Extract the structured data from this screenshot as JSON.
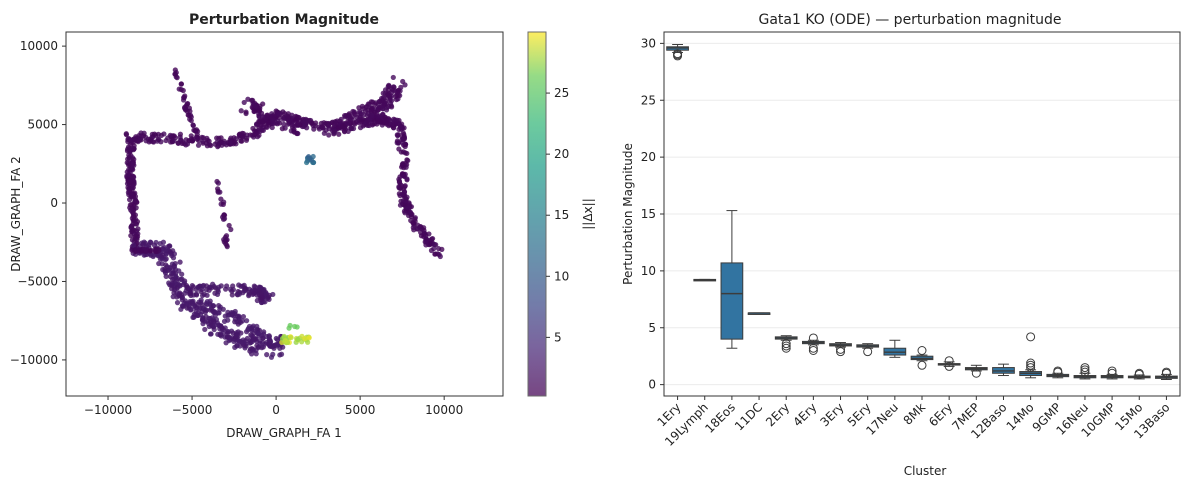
{
  "chart_data": [
    {
      "type": "scatter",
      "title": "Perturbation Magnitude",
      "xlabel": "DRAW_GRAPH_FA 1",
      "ylabel": "DRAW_GRAPH_FA 2",
      "xlim": [
        -12500,
        13500
      ],
      "ylim": [
        -12300,
        10900
      ],
      "xticks": [
        -10000,
        -5000,
        0,
        5000,
        10000
      ],
      "xtick_labels": [
        "−10000",
        "−5000",
        "0",
        "5000",
        "10000"
      ],
      "yticks": [
        -10000,
        -5000,
        0,
        5000,
        10000
      ],
      "ytick_labels": [
        "−10000",
        "−5000",
        "0",
        "5000",
        "10000"
      ],
      "colorbar": {
        "label": "||Δx||",
        "min": 0.2,
        "max": 30,
        "ticks": [
          5,
          10,
          15,
          20,
          25
        ],
        "colormap": "viridis"
      },
      "grid": false,
      "point_colors": {
        "low": "#481467",
        "mid": "#2c7b8e",
        "high": "#f7e01c"
      },
      "approx_point_groups": [
        {
          "region": "left vertical arm",
          "x_range": [
            -9000,
            -8200
          ],
          "y_range": [
            -3000,
            4200
          ],
          "value": 0.8
        },
        {
          "region": "upper arc",
          "x_range": [
            -9000,
            1800
          ],
          "y_range": [
            3500,
            6500
          ],
          "value": 0.8
        },
        {
          "region": "right upper lobe",
          "x_range": [
            1800,
            7600
          ],
          "y_range": [
            4000,
            7700
          ],
          "value": 0.8
        },
        {
          "region": "diagonal right branch",
          "x_range": [
            5600,
            10000
          ],
          "y_range": [
            -3400,
            4000
          ],
          "value": 0.8
        },
        {
          "region": "lower branch",
          "x_range": [
            -7000,
            -500
          ],
          "y_range": [
            -10000,
            -3000
          ],
          "value": 2.5
        },
        {
          "region": "lower tip bright",
          "x_range": [
            0,
            2300
          ],
          "y_range": [
            -9000,
            -8000
          ],
          "value": 29
        },
        {
          "region": "cluster mid",
          "x_range": [
            1900,
            2400
          ],
          "y_range": [
            2600,
            3100
          ],
          "value": 11
        }
      ]
    },
    {
      "type": "box",
      "title": "Gata1 KO (ODE) — perturbation magnitude",
      "xlabel": "Cluster",
      "ylabel": "Perturbation Magnitude",
      "ylim": [
        -1,
        31
      ],
      "yticks": [
        0,
        5,
        10,
        15,
        20,
        25,
        30
      ],
      "grid": "horizontal",
      "box_color": "#3274a1",
      "categories": [
        "1Ery",
        "19Lymph",
        "18Eos",
        "11DC",
        "2Ery",
        "4Ery",
        "3Ery",
        "5Ery",
        "17Neu",
        "8Mk",
        "6Ery",
        "7MEP",
        "12Baso",
        "14Mo",
        "9GMP",
        "16Neu",
        "10GMP",
        "15Mo",
        "13Baso"
      ],
      "boxes": [
        {
          "min": 29.2,
          "q1": 29.4,
          "median": 29.6,
          "q3": 29.7,
          "max": 29.9,
          "outliers": [
            28.9,
            29.0,
            29.1
          ]
        },
        {
          "min": 9.2,
          "q1": 9.2,
          "median": 9.2,
          "q3": 9.25,
          "max": 9.25,
          "outliers": []
        },
        {
          "min": 3.2,
          "q1": 4.0,
          "median": 8.0,
          "q3": 10.7,
          "max": 15.3,
          "outliers": []
        },
        {
          "min": 6.2,
          "q1": 6.25,
          "median": 6.3,
          "q3": 6.3,
          "max": 6.3,
          "outliers": []
        },
        {
          "min": 3.9,
          "q1": 4.0,
          "median": 4.1,
          "q3": 4.2,
          "max": 4.3,
          "outliers": [
            3.2,
            3.4,
            3.6
          ]
        },
        {
          "min": 3.5,
          "q1": 3.6,
          "median": 3.7,
          "q3": 3.8,
          "max": 3.9,
          "outliers": [
            3.0,
            3.2,
            4.1
          ]
        },
        {
          "min": 3.3,
          "q1": 3.4,
          "median": 3.5,
          "q3": 3.6,
          "max": 3.7,
          "outliers": [
            2.9,
            3.1
          ]
        },
        {
          "min": 3.2,
          "q1": 3.3,
          "median": 3.4,
          "q3": 3.5,
          "max": 3.6,
          "outliers": [
            2.9
          ]
        },
        {
          "min": 2.4,
          "q1": 2.6,
          "median": 2.85,
          "q3": 3.2,
          "max": 3.9,
          "outliers": []
        },
        {
          "min": 2.1,
          "q1": 2.2,
          "median": 2.3,
          "q3": 2.5,
          "max": 2.6,
          "outliers": [
            1.7,
            3.0
          ]
        },
        {
          "min": 1.6,
          "q1": 1.75,
          "median": 1.8,
          "q3": 1.85,
          "max": 2.0,
          "outliers": [
            1.6,
            2.1
          ]
        },
        {
          "min": 1.2,
          "q1": 1.3,
          "median": 1.4,
          "q3": 1.5,
          "max": 1.7,
          "outliers": [
            1.0
          ]
        },
        {
          "min": 0.8,
          "q1": 1.0,
          "median": 1.2,
          "q3": 1.5,
          "max": 1.8,
          "outliers": []
        },
        {
          "min": 0.6,
          "q1": 0.8,
          "median": 1.0,
          "q3": 1.15,
          "max": 1.3,
          "outliers": [
            1.5,
            1.7,
            1.9,
            4.2
          ]
        },
        {
          "min": 0.6,
          "q1": 0.7,
          "median": 0.8,
          "q3": 0.9,
          "max": 1.0,
          "outliers": [
            1.1,
            1.2
          ]
        },
        {
          "min": 0.5,
          "q1": 0.6,
          "median": 0.7,
          "q3": 0.8,
          "max": 1.0,
          "outliers": [
            1.1,
            1.3,
            1.5
          ]
        },
        {
          "min": 0.5,
          "q1": 0.6,
          "median": 0.7,
          "q3": 0.8,
          "max": 0.9,
          "outliers": [
            1.0,
            1.2
          ]
        },
        {
          "min": 0.5,
          "q1": 0.6,
          "median": 0.65,
          "q3": 0.75,
          "max": 0.85,
          "outliers": [
            0.9,
            1.0
          ]
        },
        {
          "min": 0.45,
          "q1": 0.55,
          "median": 0.65,
          "q3": 0.75,
          "max": 0.9,
          "outliers": [
            1.0,
            1.1
          ]
        }
      ]
    }
  ]
}
